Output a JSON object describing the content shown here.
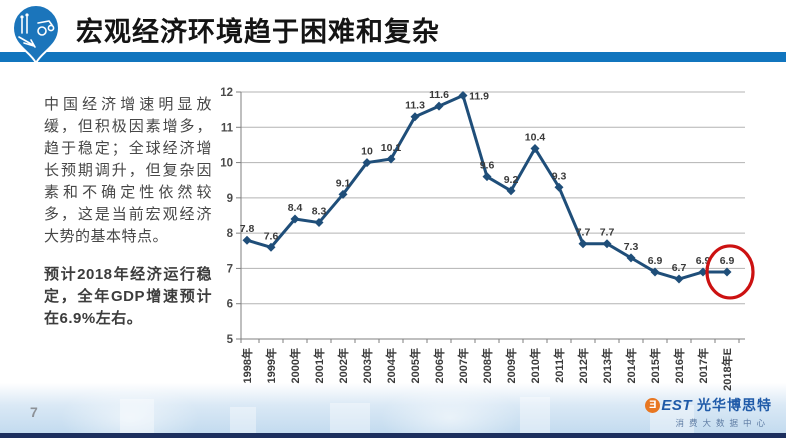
{
  "header": {
    "title": "宏观经济环境趋于困难和复杂"
  },
  "left_panel": {
    "para1": "中国经济增速明显放缓，但积极因素增多，趋于稳定；全球经济增长预期调升，但复杂因素和不确定性依然较多，这是当前宏观经济大势的基本特点。",
    "para2": "预计2018年经济运行稳定，全年GDP增速预计在6.9%左右。"
  },
  "chart_data": {
    "type": "line",
    "categories": [
      "1998年",
      "1999年",
      "2000年",
      "2001年",
      "2002年",
      "2003年",
      "2004年",
      "2005年",
      "2006年",
      "2007年",
      "2008年",
      "2009年",
      "2010年",
      "2011年",
      "2012年",
      "2013年",
      "2014年",
      "2015年",
      "2016年",
      "2017年",
      "2018年E"
    ],
    "values": [
      7.8,
      7.6,
      8.4,
      8.3,
      9.1,
      10,
      10.1,
      11.3,
      11.6,
      11.9,
      9.6,
      9.2,
      10.4,
      9.3,
      7.7,
      7.7,
      7.3,
      6.9,
      6.7,
      6.9,
      6.9
    ],
    "title": "",
    "xlabel": "",
    "ylabel": "",
    "ylim": [
      5,
      12
    ],
    "ytick_step": 1,
    "grid": true,
    "legend_position": "none",
    "line_color": "#1f4e79",
    "marker": "diamond",
    "label_color": "#3a3a3a",
    "grid_color": "#b3b3b3",
    "axis_color": "#7f7f7f",
    "highlight": {
      "index": 20,
      "shape": "circle",
      "color": "#cc1111"
    }
  },
  "footer": {
    "page_number": "7",
    "brand": {
      "logo_letter": "Ǝ",
      "logo_rest": "EST",
      "name": "光华博思特",
      "subtitle": "消费大数据中心"
    }
  },
  "colors": {
    "accent_bar": "#1175be",
    "bottom_bar": "#1c2f5e",
    "pin_blue": "#1b75bb"
  }
}
